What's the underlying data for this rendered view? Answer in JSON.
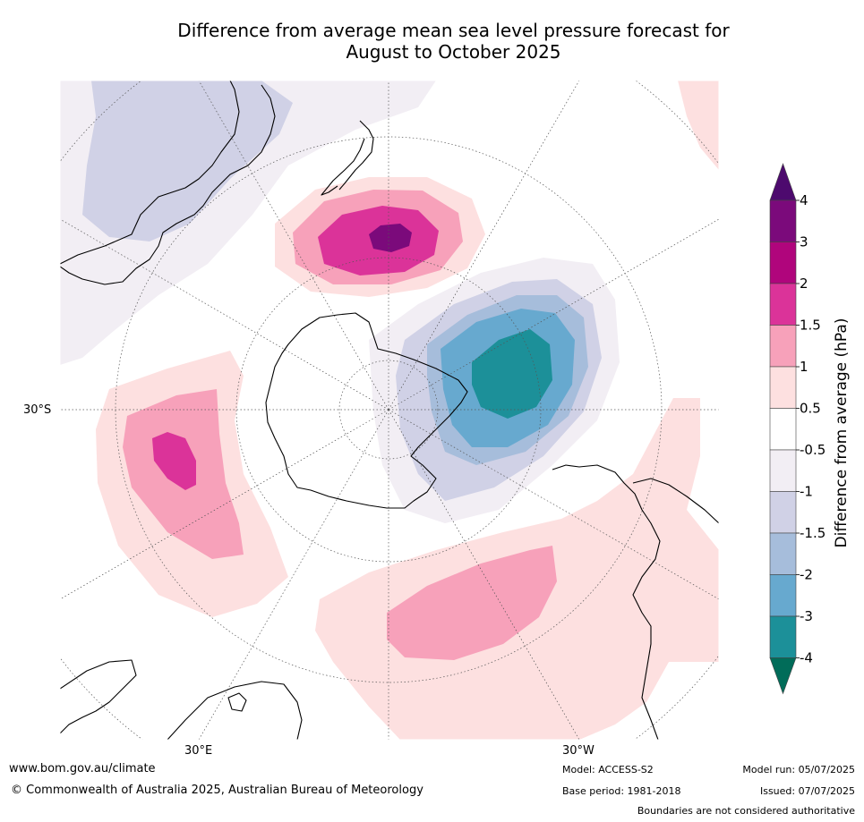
{
  "title_line1": "Difference from average mean sea level pressure forecast for",
  "title_line2": "August to October 2025",
  "map": {
    "projection": "south-polar-stereographic",
    "lat_label": "30°S",
    "lon_labels": [
      "30°E",
      "30°W"
    ]
  },
  "colorbar": {
    "title": "Difference from average (hPa)",
    "tick_labels": [
      "4",
      "3",
      "2",
      "1.5",
      "1",
      "0.5",
      "-0.5",
      "-1",
      "-1.5",
      "-2",
      "-3",
      "-4"
    ],
    "bins": [
      {
        "range": "3 to 4",
        "color": "#7b0a7b"
      },
      {
        "range": "2 to 3",
        "color": "#b0057c"
      },
      {
        "range": "1.5 to 2",
        "color": "#db3399"
      },
      {
        "range": "1 to 1.5",
        "color": "#f7a1ba"
      },
      {
        "range": "0.5 to 1",
        "color": "#fde0e0"
      },
      {
        "range": "-0.5 to 0.5",
        "color": "#ffffff"
      },
      {
        "range": "-1 to -0.5",
        "color": "#f2eef4"
      },
      {
        "range": "-1.5 to -1",
        "color": "#d0d1e6"
      },
      {
        "range": "-2 to -1.5",
        "color": "#a6bddb"
      },
      {
        "range": "-3 to -2",
        "color": "#67a9cf"
      },
      {
        "range": "-4 to -3",
        "color": "#1c9099"
      }
    ],
    "over_color": "#4d0a6e",
    "under_color": "#016c59"
  },
  "footer": {
    "website": "www.bom.gov.au/climate",
    "copyright": "© Commonwealth of Australia 2025, Australian Bureau of Meteorology",
    "model": "Model: ACCESS-S2",
    "base_period": "Base period: 1981-2018",
    "model_run": "Model run: 05/07/2025",
    "issued": "Issued: 07/07/2025",
    "disclaimer": "Boundaries are not considered authoritative"
  }
}
